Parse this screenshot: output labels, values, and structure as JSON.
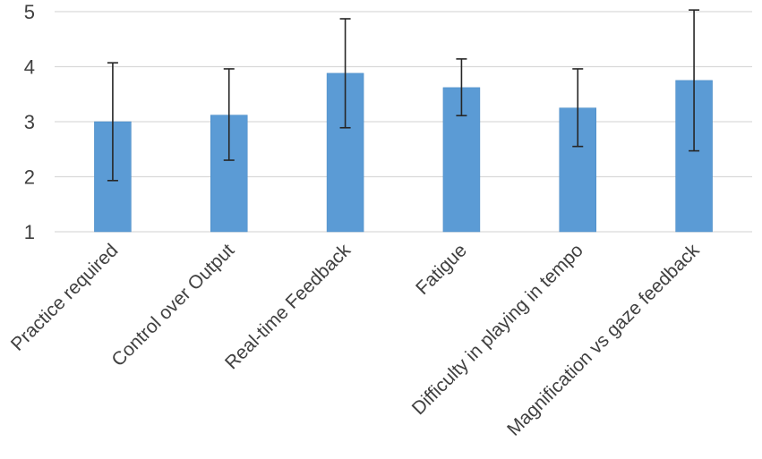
{
  "chart_data": {
    "type": "bar",
    "title": "",
    "xlabel": "",
    "ylabel": "",
    "ylim": [
      1,
      5
    ],
    "yticks": [
      1,
      2,
      3,
      4,
      5
    ],
    "grid": true,
    "legend": "none",
    "categories": [
      "Practice required",
      "Control over Output",
      "Real-time Feedback",
      "Fatigue",
      "Difficulty in playing in tempo",
      "Magnification vs  gaze feedback"
    ],
    "values": [
      3.0,
      3.12,
      3.88,
      3.62,
      3.25,
      3.75
    ],
    "error_low": [
      1.93,
      2.3,
      2.89,
      3.11,
      2.55,
      2.47
    ],
    "error_high": [
      4.07,
      3.96,
      4.87,
      4.14,
      3.96,
      5.03
    ],
    "colors": {
      "bar": "#5b9bd5",
      "bar_edge": "#4a8ac4",
      "gridline": "#d9d9d9",
      "error_bar": "#262626",
      "text": "#404040"
    }
  }
}
